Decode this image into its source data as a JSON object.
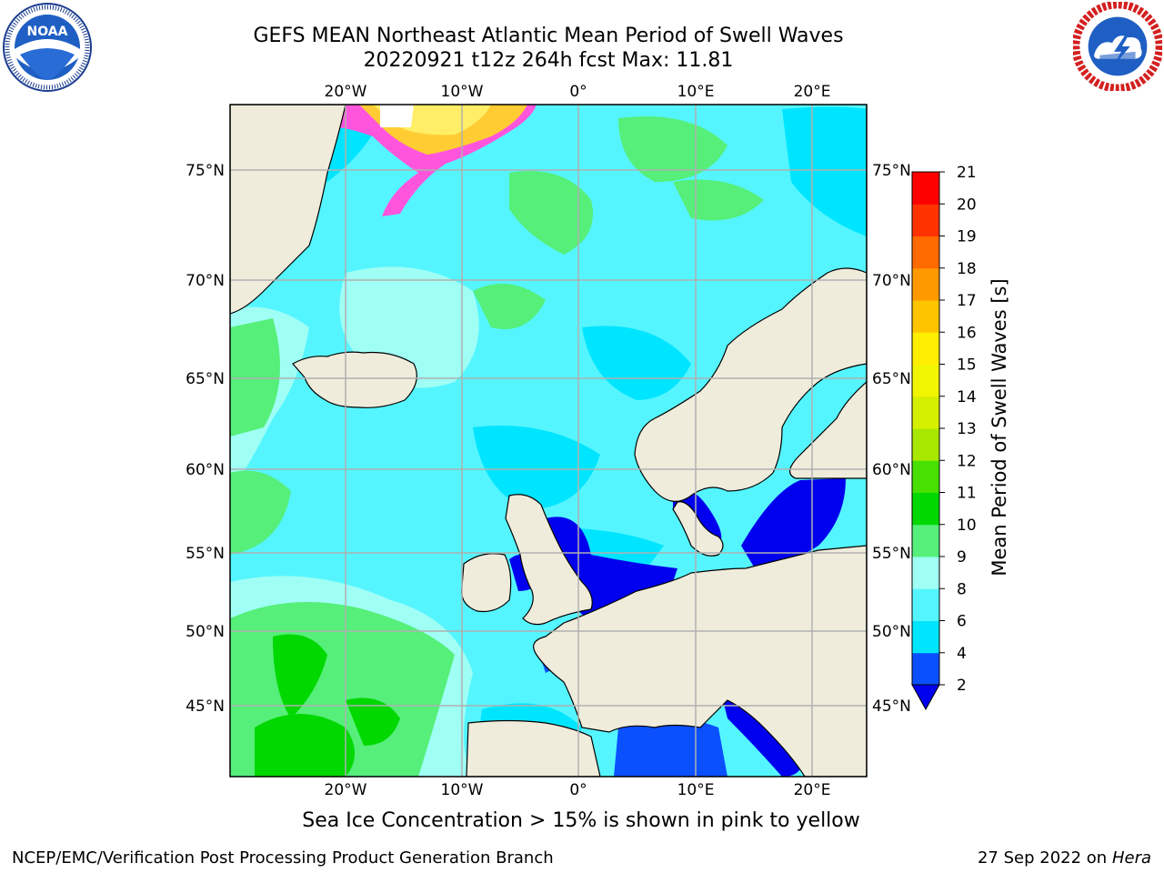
{
  "title": {
    "line1": "GEFS MEAN Northeast Atlantic Mean Period of Swell Waves",
    "line2": "20220921 t12z 264h fcst   Max: 11.81"
  },
  "logos": {
    "left": {
      "text": "NOAA",
      "ring_text": "NATIONAL OCEANIC AND ATMOSPHERIC ADMINISTRATION · U.S. DEPARTMENT OF COMMERCE",
      "icon": "noaa-logo"
    },
    "right": {
      "ring_text": "NATIONAL WEATHER SERVICE",
      "icon": "nws-logo"
    }
  },
  "map": {
    "lon_labels": [
      "20°W",
      "10°W",
      "0°",
      "10°E",
      "20°E"
    ],
    "lat_labels": [
      "75°N",
      "70°N",
      "65°N",
      "60°N",
      "55°N",
      "50°N",
      "45°N"
    ],
    "land_color": "#efecdc",
    "grid_color": "#b0b0b0"
  },
  "colorbar": {
    "label": "Mean Period of Swell Waves [s]",
    "ticks": [
      "2",
      "4",
      "6",
      "8",
      "9",
      "10",
      "11",
      "12",
      "13",
      "14",
      "15",
      "16",
      "17",
      "18",
      "19",
      "20",
      "21"
    ],
    "colors": [
      "#0a50ff",
      "#00e5ff",
      "#55f5ff",
      "#a0fff5",
      "#55ef7a",
      "#00d800",
      "#47e000",
      "#a8e800",
      "#d5ef00",
      "#f2f500",
      "#ffee00",
      "#ffc400",
      "#ff9900",
      "#ff6a00",
      "#ff3300",
      "#ff0000"
    ],
    "under_color": "#0000ee"
  },
  "caption": "Sea Ice Concentration > 15% is shown in pink to yellow",
  "footer": {
    "left": "NCEP/EMC/Verification Post Processing Product Generation Branch",
    "right_date": "27 Sep 2022 on",
    "right_host": "Hera"
  }
}
